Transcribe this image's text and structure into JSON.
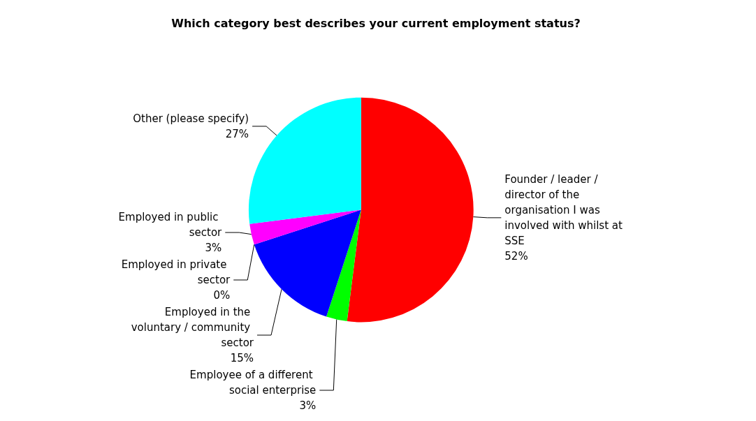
{
  "chart_data": {
    "type": "pie",
    "title": "Which category best describes your current employment status?",
    "categories": [
      "Founder / leader / director of the organisation I was involved with whilst at SSE",
      "Employee of a different social enterprise",
      "Employed in the voluntary / community sector",
      "Employed in private sector",
      "Employed in public sector",
      "Other (please specify)"
    ],
    "values": [
      52,
      3,
      15,
      0,
      3,
      27
    ],
    "value_labels": [
      "52%",
      "3%",
      "15%",
      "0%",
      "3%",
      "27%"
    ],
    "colors": [
      "#ff0000",
      "#00ff00",
      "#0000ff",
      "#800080",
      "#ff00ff",
      "#00ffff"
    ],
    "legend": false
  }
}
